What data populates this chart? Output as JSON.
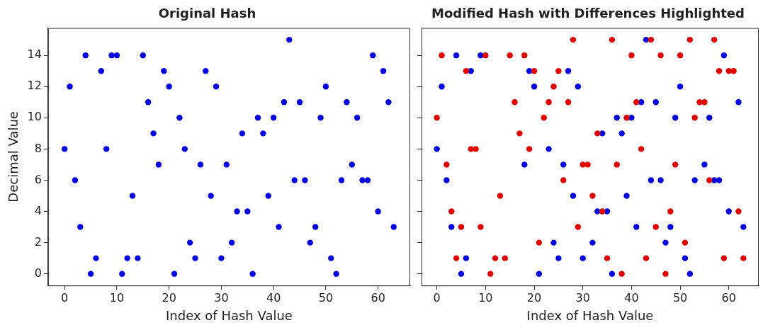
{
  "chart_data": [
    {
      "type": "scatter",
      "title": "Original Hash",
      "xlabel": "Index of Hash Value",
      "ylabel": "Decimal Value",
      "marker": "circle",
      "x": [
        0,
        1,
        2,
        3,
        4,
        5,
        6,
        7,
        8,
        9,
        10,
        11,
        12,
        13,
        14,
        15,
        16,
        17,
        18,
        19,
        20,
        21,
        22,
        23,
        24,
        25,
        26,
        27,
        28,
        29,
        30,
        31,
        32,
        33,
        34,
        35,
        36,
        37,
        38,
        39,
        40,
        41,
        42,
        43,
        44,
        45,
        46,
        47,
        48,
        49,
        50,
        51,
        52,
        53,
        54,
        55,
        56,
        57,
        58,
        59,
        60,
        61,
        62,
        63
      ],
      "series": [
        {
          "color": "#0000e0",
          "values": [
            8,
            12,
            6,
            3,
            14,
            0,
            1,
            13,
            8,
            14,
            14,
            0,
            1,
            5,
            1,
            14,
            11,
            9,
            7,
            13,
            12,
            0,
            10,
            8,
            2,
            1,
            7,
            13,
            5,
            12,
            1,
            7,
            2,
            4,
            9,
            4,
            0,
            10,
            9,
            5,
            10,
            3,
            11,
            15,
            6,
            11,
            6,
            2,
            3,
            10,
            12,
            1,
            0,
            6,
            11,
            7,
            10,
            6,
            6,
            14,
            4,
            13,
            11,
            3
          ]
        }
      ],
      "xlim": [
        -3.15,
        66.15
      ],
      "ylim": [
        -0.75,
        15.75
      ],
      "xticks": [
        0,
        10,
        20,
        30,
        40,
        50,
        60
      ],
      "yticks": [
        0,
        2,
        4,
        6,
        8,
        10,
        12,
        14
      ]
    },
    {
      "type": "scatter",
      "title": "Modified Hash with Differences Highlighted",
      "xlabel": "Index of Hash Value",
      "marker": "circle",
      "tick_labels": "x",
      "x": [
        0,
        1,
        2,
        3,
        4,
        5,
        6,
        7,
        8,
        9,
        10,
        11,
        12,
        13,
        14,
        15,
        16,
        17,
        18,
        19,
        20,
        21,
        22,
        23,
        24,
        25,
        26,
        27,
        28,
        29,
        30,
        31,
        32,
        33,
        34,
        35,
        36,
        37,
        38,
        39,
        40,
        41,
        42,
        43,
        44,
        45,
        46,
        47,
        48,
        49,
        50,
        51,
        52,
        53,
        54,
        55,
        56,
        57,
        58,
        59,
        60,
        61,
        62,
        63
      ],
      "series": [
        {
          "color": "#0000e0",
          "values": [
            8,
            12,
            6,
            3,
            14,
            0,
            1,
            13,
            null,
            14,
            null,
            null,
            null,
            null,
            null,
            null,
            null,
            null,
            7,
            13,
            12,
            0,
            null,
            8,
            2,
            1,
            7,
            13,
            5,
            12,
            1,
            null,
            2,
            4,
            9,
            4,
            0,
            10,
            9,
            5,
            10,
            3,
            11,
            15,
            6,
            11,
            6,
            2,
            3,
            10,
            12,
            1,
            0,
            6,
            null,
            7,
            10,
            6,
            6,
            14,
            4,
            null,
            11,
            3
          ]
        },
        {
          "color": "#e00000",
          "values": [
            10,
            14,
            7,
            4,
            1,
            3,
            13,
            8,
            8,
            3,
            14,
            0,
            1,
            5,
            1,
            14,
            11,
            9,
            14,
            8,
            13,
            2,
            10,
            11,
            12,
            13,
            6,
            11,
            15,
            3,
            7,
            7,
            5,
            9,
            4,
            1,
            15,
            7,
            0,
            10,
            14,
            11,
            8,
            1,
            15,
            3,
            14,
            0,
            4,
            7,
            14,
            2,
            15,
            10,
            11,
            11,
            6,
            15,
            13,
            1,
            13,
            13,
            4,
            1
          ]
        }
      ],
      "xlim": [
        -3.15,
        66.15
      ],
      "ylim": [
        -0.75,
        15.75
      ],
      "xticks": [
        0,
        10,
        20,
        30,
        40,
        50,
        60
      ],
      "yticks": [
        0,
        2,
        4,
        6,
        8,
        10,
        12,
        14
      ]
    }
  ]
}
